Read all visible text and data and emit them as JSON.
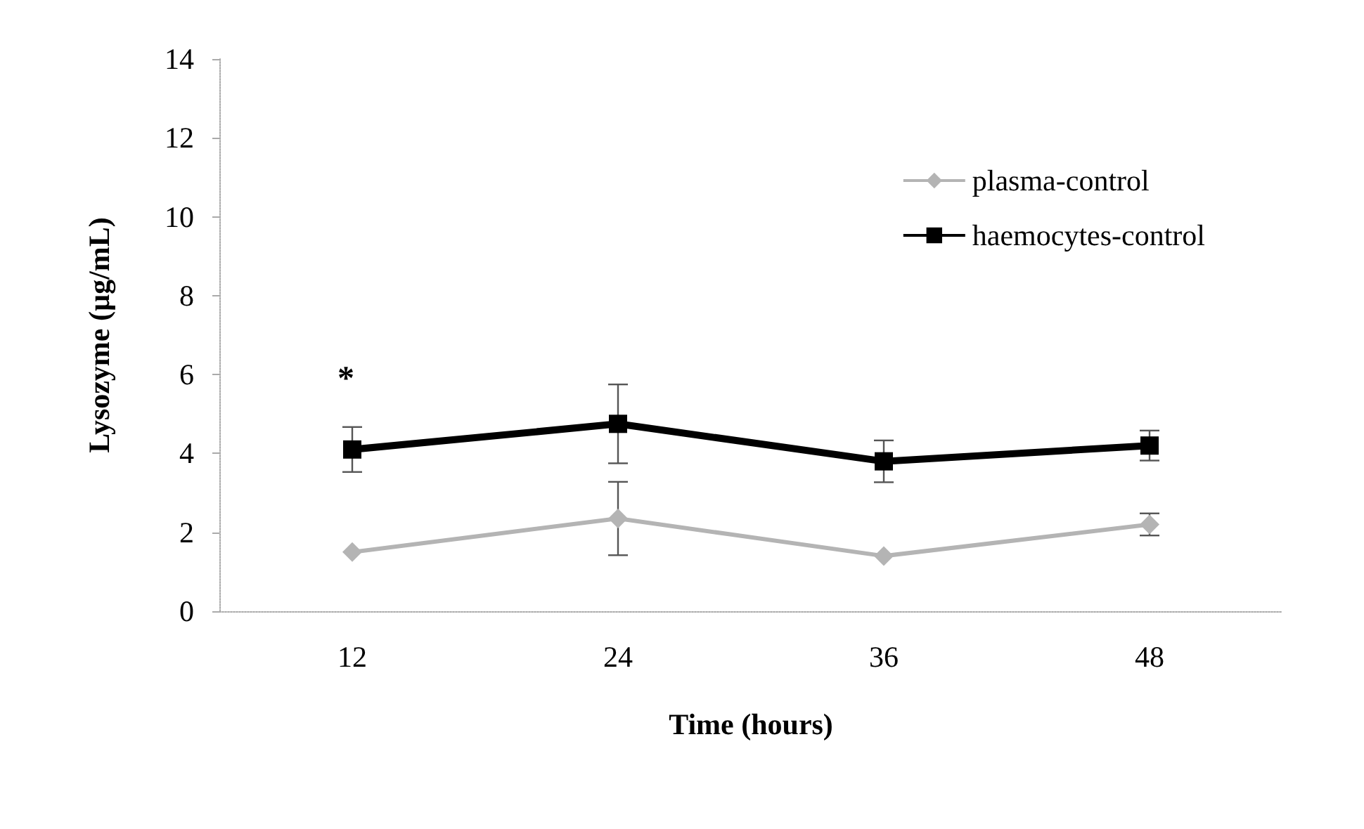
{
  "chart_data": {
    "type": "line",
    "xlabel": "Time (hours)",
    "ylabel": "Lysozyme (µg/mL)",
    "categories": [
      "12",
      "24",
      "36",
      "48"
    ],
    "ylim": [
      0,
      14
    ],
    "yticks": [
      0,
      2,
      4,
      6,
      8,
      10,
      12,
      14
    ],
    "grid": false,
    "legend": "top right",
    "line_style": "solid",
    "series": [
      {
        "name": "plasma-control",
        "color": "#b4b4b4",
        "marker": "diamond",
        "values": [
          1.5,
          2.35,
          1.4,
          2.2
        ],
        "errors": [
          null,
          0.93,
          null,
          0.28
        ]
      },
      {
        "name": "haemocytes-control",
        "color": "#000000",
        "marker": "square",
        "values": [
          4.1,
          4.75,
          3.8,
          4.2
        ],
        "errors": [
          0.57,
          1.0,
          0.53,
          0.38
        ]
      }
    ],
    "annotations": [
      "*"
    ]
  }
}
